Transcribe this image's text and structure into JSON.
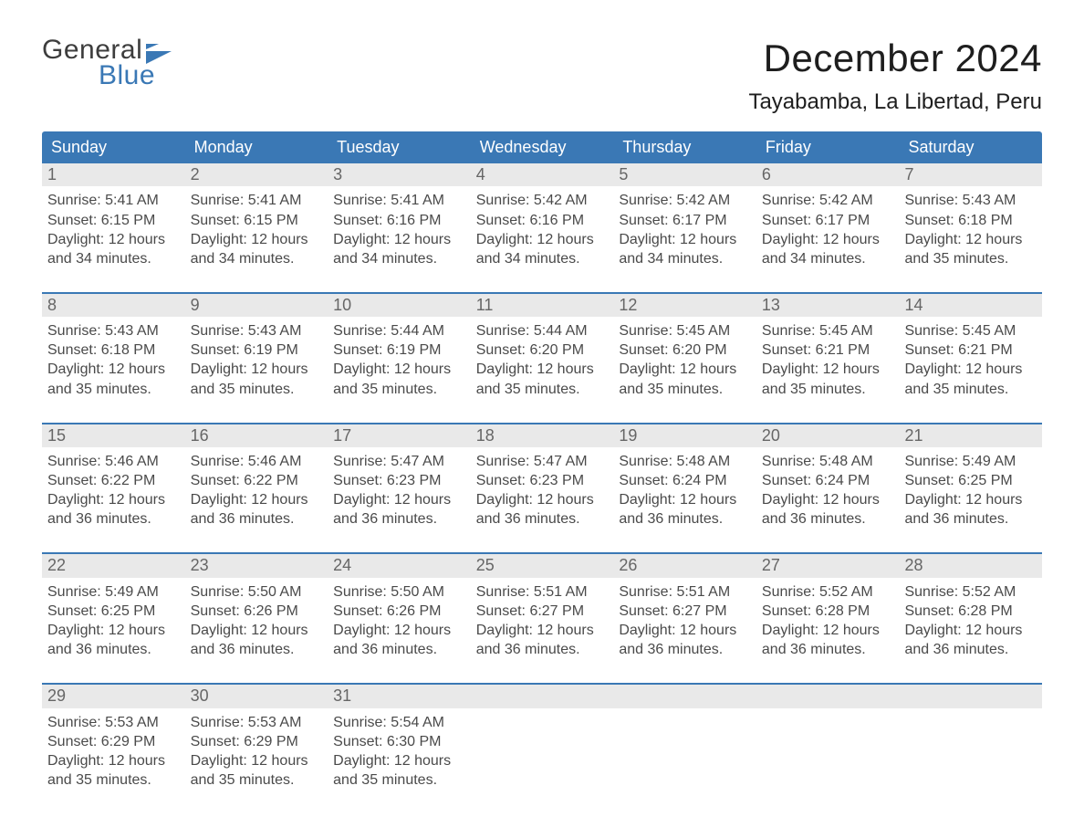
{
  "brand": {
    "word1": "General",
    "word2": "Blue"
  },
  "colors": {
    "accent": "#3a78b5",
    "header_bg": "#e9e9e9",
    "text": "#2a2a2a",
    "muted": "#4a4a4a",
    "background": "#ffffff"
  },
  "title": "December 2024",
  "location": "Tayabamba, La Libertad, Peru",
  "days_of_week": [
    "Sunday",
    "Monday",
    "Tuesday",
    "Wednesday",
    "Thursday",
    "Friday",
    "Saturday"
  ],
  "labels": {
    "sunrise": "Sunrise",
    "sunset": "Sunset",
    "daylight": "Daylight"
  },
  "calendar": {
    "structure": "month-grid",
    "columns": 7,
    "rows": 5,
    "week_divider_color": "#3a78b5",
    "day_header_bg": "#e9e9e9",
    "font_family": "Arial",
    "day_number_fontsize": 18,
    "body_fontsize": 16,
    "dow_fontsize": 18,
    "title_fontsize": 42,
    "location_fontsize": 24
  },
  "days": [
    {
      "n": 1,
      "sunrise": "5:41 AM",
      "sunset": "6:15 PM",
      "dl1": "12 hours",
      "dl2": "and 34 minutes."
    },
    {
      "n": 2,
      "sunrise": "5:41 AM",
      "sunset": "6:15 PM",
      "dl1": "12 hours",
      "dl2": "and 34 minutes."
    },
    {
      "n": 3,
      "sunrise": "5:41 AM",
      "sunset": "6:16 PM",
      "dl1": "12 hours",
      "dl2": "and 34 minutes."
    },
    {
      "n": 4,
      "sunrise": "5:42 AM",
      "sunset": "6:16 PM",
      "dl1": "12 hours",
      "dl2": "and 34 minutes."
    },
    {
      "n": 5,
      "sunrise": "5:42 AM",
      "sunset": "6:17 PM",
      "dl1": "12 hours",
      "dl2": "and 34 minutes."
    },
    {
      "n": 6,
      "sunrise": "5:42 AM",
      "sunset": "6:17 PM",
      "dl1": "12 hours",
      "dl2": "and 34 minutes."
    },
    {
      "n": 7,
      "sunrise": "5:43 AM",
      "sunset": "6:18 PM",
      "dl1": "12 hours",
      "dl2": "and 35 minutes."
    },
    {
      "n": 8,
      "sunrise": "5:43 AM",
      "sunset": "6:18 PM",
      "dl1": "12 hours",
      "dl2": "and 35 minutes."
    },
    {
      "n": 9,
      "sunrise": "5:43 AM",
      "sunset": "6:19 PM",
      "dl1": "12 hours",
      "dl2": "and 35 minutes."
    },
    {
      "n": 10,
      "sunrise": "5:44 AM",
      "sunset": "6:19 PM",
      "dl1": "12 hours",
      "dl2": "and 35 minutes."
    },
    {
      "n": 11,
      "sunrise": "5:44 AM",
      "sunset": "6:20 PM",
      "dl1": "12 hours",
      "dl2": "and 35 minutes."
    },
    {
      "n": 12,
      "sunrise": "5:45 AM",
      "sunset": "6:20 PM",
      "dl1": "12 hours",
      "dl2": "and 35 minutes."
    },
    {
      "n": 13,
      "sunrise": "5:45 AM",
      "sunset": "6:21 PM",
      "dl1": "12 hours",
      "dl2": "and 35 minutes."
    },
    {
      "n": 14,
      "sunrise": "5:45 AM",
      "sunset": "6:21 PM",
      "dl1": "12 hours",
      "dl2": "and 35 minutes."
    },
    {
      "n": 15,
      "sunrise": "5:46 AM",
      "sunset": "6:22 PM",
      "dl1": "12 hours",
      "dl2": "and 36 minutes."
    },
    {
      "n": 16,
      "sunrise": "5:46 AM",
      "sunset": "6:22 PM",
      "dl1": "12 hours",
      "dl2": "and 36 minutes."
    },
    {
      "n": 17,
      "sunrise": "5:47 AM",
      "sunset": "6:23 PM",
      "dl1": "12 hours",
      "dl2": "and 36 minutes."
    },
    {
      "n": 18,
      "sunrise": "5:47 AM",
      "sunset": "6:23 PM",
      "dl1": "12 hours",
      "dl2": "and 36 minutes."
    },
    {
      "n": 19,
      "sunrise": "5:48 AM",
      "sunset": "6:24 PM",
      "dl1": "12 hours",
      "dl2": "and 36 minutes."
    },
    {
      "n": 20,
      "sunrise": "5:48 AM",
      "sunset": "6:24 PM",
      "dl1": "12 hours",
      "dl2": "and 36 minutes."
    },
    {
      "n": 21,
      "sunrise": "5:49 AM",
      "sunset": "6:25 PM",
      "dl1": "12 hours",
      "dl2": "and 36 minutes."
    },
    {
      "n": 22,
      "sunrise": "5:49 AM",
      "sunset": "6:25 PM",
      "dl1": "12 hours",
      "dl2": "and 36 minutes."
    },
    {
      "n": 23,
      "sunrise": "5:50 AM",
      "sunset": "6:26 PM",
      "dl1": "12 hours",
      "dl2": "and 36 minutes."
    },
    {
      "n": 24,
      "sunrise": "5:50 AM",
      "sunset": "6:26 PM",
      "dl1": "12 hours",
      "dl2": "and 36 minutes."
    },
    {
      "n": 25,
      "sunrise": "5:51 AM",
      "sunset": "6:27 PM",
      "dl1": "12 hours",
      "dl2": "and 36 minutes."
    },
    {
      "n": 26,
      "sunrise": "5:51 AM",
      "sunset": "6:27 PM",
      "dl1": "12 hours",
      "dl2": "and 36 minutes."
    },
    {
      "n": 27,
      "sunrise": "5:52 AM",
      "sunset": "6:28 PM",
      "dl1": "12 hours",
      "dl2": "and 36 minutes."
    },
    {
      "n": 28,
      "sunrise": "5:52 AM",
      "sunset": "6:28 PM",
      "dl1": "12 hours",
      "dl2": "and 36 minutes."
    },
    {
      "n": 29,
      "sunrise": "5:53 AM",
      "sunset": "6:29 PM",
      "dl1": "12 hours",
      "dl2": "and 35 minutes."
    },
    {
      "n": 30,
      "sunrise": "5:53 AM",
      "sunset": "6:29 PM",
      "dl1": "12 hours",
      "dl2": "and 35 minutes."
    },
    {
      "n": 31,
      "sunrise": "5:54 AM",
      "sunset": "6:30 PM",
      "dl1": "12 hours",
      "dl2": "and 35 minutes."
    }
  ]
}
